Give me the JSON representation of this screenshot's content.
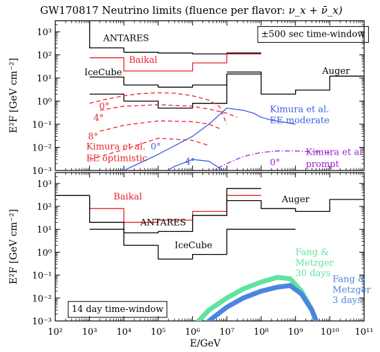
{
  "title": "GW170817 Neutrino limits (fluence per flavor: ",
  "title_math": "ν_x + ν̄_x)",
  "xlabel": "E/GeV",
  "chart_data": [
    {
      "type": "line",
      "panel": "top",
      "x_scale": "log",
      "y_scale": "log",
      "xlim": [
        100,
        100000000000
      ],
      "ylim": [
        0.001,
        3000
      ],
      "ylabel": "E²F [GeV cm⁻²]",
      "x_ticks": [
        "10²",
        "10³",
        "10⁴",
        "10⁵",
        "10⁶",
        "10⁷",
        "10⁸",
        "10⁹",
        "10¹⁰",
        "10¹¹"
      ],
      "y_ticks": [
        "10⁻³",
        "10⁻²",
        "10⁻¹",
        "10⁰",
        "10¹",
        "10²",
        "10³"
      ],
      "annotations": [
        {
          "key": "window",
          "text": "±500 sec time-window",
          "x": 100000000.0,
          "y": 600,
          "color": "#000000",
          "boxed": true
        },
        {
          "key": "antares",
          "text": "ANTARES",
          "x": 2500,
          "y": 400,
          "color": "#000000"
        },
        {
          "key": "baikal",
          "text": "Baikal",
          "x": 14000,
          "y": 45,
          "color": "#e8202a"
        },
        {
          "key": "icecube",
          "text": "IceCube",
          "x": 700,
          "y": 13,
          "color": "#000000"
        },
        {
          "key": "auger",
          "text": "Auger",
          "x": 6000000000.0,
          "y": 15,
          "color": "#000000"
        },
        {
          "key": "ang0a",
          "text": "0°",
          "x": 1900,
          "y": 0.45,
          "color": "#e8202a"
        },
        {
          "key": "ang4a",
          "text": "4°",
          "x": 1300,
          "y": 0.14,
          "color": "#e8202a"
        },
        {
          "key": "ang8a",
          "text": "8°",
          "x": 900,
          "y": 0.022,
          "color": "#e8202a"
        },
        {
          "key": "kimopt1",
          "text": "Kimura et al.",
          "x": 800,
          "y": 0.008,
          "color": "#e8202a"
        },
        {
          "key": "kimopt2",
          "text": "EE optimistic",
          "x": 800,
          "y": 0.0025,
          "color": "#e8202a"
        },
        {
          "key": "ang0b",
          "text": "0°",
          "x": 60000,
          "y": 0.008,
          "color": "#3a5ddb"
        },
        {
          "key": "ang4b",
          "text": "4°",
          "x": 600000,
          "y": 0.0018,
          "color": "#3a5ddb"
        },
        {
          "key": "kimmod1",
          "text": "Kimura et al.",
          "x": 180000000.0,
          "y": 0.33,
          "color": "#3a5ddb"
        },
        {
          "key": "kimmod2",
          "text": "EE moderate",
          "x": 180000000.0,
          "y": 0.11,
          "color": "#3a5ddb"
        },
        {
          "key": "ang0c",
          "text": "0°",
          "x": 180000000.0,
          "y": 0.0017,
          "color": "#9a1fd0"
        },
        {
          "key": "kimpr1",
          "text": "Kimura et al.",
          "x": 2000000000.0,
          "y": 0.0047,
          "color": "#9a1fd0"
        },
        {
          "key": "kimpr2",
          "text": "prompt",
          "x": 2000000000.0,
          "y": 0.0014,
          "color": "#9a1fd0"
        }
      ],
      "series": [
        {
          "key": "antares",
          "color": "#000000",
          "style": "step",
          "x": [
            1000,
            1000,
            10000,
            10000,
            100000,
            100000,
            1000000,
            1000000,
            10000000,
            10000000,
            100000000
          ],
          "y": [
            3000,
            200,
            200,
            130,
            130,
            120,
            120,
            110,
            110,
            120,
            120
          ]
        },
        {
          "key": "baikal",
          "color": "#e8202a",
          "style": "step",
          "x": [
            1000,
            10000,
            10000,
            100000,
            100000,
            1000000,
            1000000,
            10000000,
            10000000,
            100000000
          ],
          "y": [
            75,
            75,
            20,
            20,
            20,
            20,
            45,
            45,
            110,
            110
          ]
        },
        {
          "key": "icecube1",
          "color": "#000000",
          "style": "step",
          "x": [
            1000,
            10000,
            10000,
            100000,
            100000,
            1000000,
            1000000,
            10000000,
            10000000,
            100000000
          ],
          "y": [
            11,
            11,
            5,
            5,
            4,
            4,
            5,
            5,
            15,
            15
          ]
        },
        {
          "key": "icecube2",
          "color": "#000000",
          "style": "step",
          "x": [
            1000,
            10000,
            10000,
            100000,
            100000,
            1000000,
            1000000,
            10000000,
            10000000,
            100000000
          ],
          "y": [
            2,
            2,
            1,
            1,
            0.5,
            0.5,
            0.8,
            0.8,
            15,
            15
          ]
        },
        {
          "key": "auger",
          "color": "#000000",
          "style": "step",
          "x": [
            10000000.0,
            10000000.0,
            100000000.0,
            100000000.0,
            1000000000.0,
            1000000000.0,
            10000000000.0,
            10000000000.0,
            100000000000.0
          ],
          "y": [
            18,
            18,
            18,
            2,
            2,
            3,
            3,
            12,
            12
          ]
        },
        {
          "key": "kim_opt_0",
          "color": "#e8202a",
          "style": "dashed",
          "x": [
            1000,
            3000,
            10000,
            30000,
            100000,
            300000,
            1000000,
            3000000,
            6000000,
            10000000
          ],
          "y": [
            0.8,
            1.2,
            1.7,
            2.1,
            2.3,
            2.2,
            1.7,
            1.1,
            0.6,
            0.1
          ]
        },
        {
          "key": "kim_opt_4",
          "color": "#e8202a",
          "style": "dashed",
          "x": [
            2000,
            10000,
            100000,
            1000000,
            3000000,
            10000000,
            20000000
          ],
          "y": [
            0.4,
            0.6,
            0.7,
            0.6,
            0.45,
            0.3,
            0.2
          ]
        },
        {
          "key": "kim_opt_8",
          "color": "#e8202a",
          "style": "dashed",
          "x": [
            2000,
            10000,
            100000,
            1000000,
            3000000,
            7000000
          ],
          "y": [
            0.05,
            0.09,
            0.14,
            0.13,
            0.1,
            0.06
          ]
        },
        {
          "key": "kim_opt_low",
          "color": "#e8202a",
          "style": "dashed",
          "x": [
            1000,
            10000,
            100000,
            1000000,
            3000000
          ],
          "y": [
            0.003,
            0.008,
            0.025,
            0.02,
            0.012
          ]
        },
        {
          "key": "kim_mod_0",
          "color": "#3a5ddb",
          "style": "solid",
          "x": [
            10000,
            100000,
            1000000,
            3000000,
            10000000,
            30000000,
            60000000,
            100000000,
            200000000,
            500000000,
            1000000000
          ],
          "y": [
            0.001,
            0.005,
            0.03,
            0.1,
            0.5,
            0.4,
            0.3,
            0.2,
            0.15,
            0.12,
            0.1
          ]
        },
        {
          "key": "kim_mod_4",
          "color": "#3a5ddb",
          "style": "solid",
          "x": [
            100000,
            300000,
            1000000,
            3000000,
            10000000
          ],
          "y": [
            0.0006,
            0.0015,
            0.003,
            0.0025,
            0.0008
          ]
        },
        {
          "key": "kim_prompt",
          "color": "#9a1fd0",
          "style": "dashdot",
          "x": [
            3000000,
            10000000,
            30000000,
            100000000,
            300000000,
            1000000000,
            3000000000,
            10000000000
          ],
          "y": [
            0.0008,
            0.002,
            0.004,
            0.006,
            0.007,
            0.007,
            0.0065,
            0.006
          ]
        }
      ]
    },
    {
      "type": "line",
      "panel": "bottom",
      "x_scale": "log",
      "y_scale": "log",
      "xlim": [
        100,
        100000000000
      ],
      "ylim": [
        0.001,
        3000
      ],
      "ylabel": "E²F [GeV cm⁻²]",
      "x_ticks": [
        "10²",
        "10³",
        "10⁴",
        "10⁵",
        "10⁶",
        "10⁷",
        "10⁸",
        "10⁹",
        "10¹⁰",
        "10¹¹"
      ],
      "y_ticks": [
        "10⁻³",
        "10⁻²",
        "10⁻¹",
        "10⁰",
        "10¹",
        "10²",
        "10³"
      ],
      "annotations": [
        {
          "key": "window",
          "text": "14 day time-window",
          "x": 300,
          "y": 0.0025,
          "color": "#000000",
          "boxed": true
        },
        {
          "key": "baikal",
          "text": "Baikal",
          "x": 5000,
          "y": 200,
          "color": "#e8202a"
        },
        {
          "key": "antares",
          "text": "ANTARES",
          "x": 30000,
          "y": 15,
          "color": "#000000"
        },
        {
          "key": "icecube",
          "text": "IceCube",
          "x": 300000,
          "y": 1.5,
          "color": "#000000"
        },
        {
          "key": "auger",
          "text": "Auger",
          "x": 400000000,
          "y": 150,
          "color": "#000000"
        },
        {
          "key": "fang30a",
          "text": "Fang &",
          "x": 1000000000.0,
          "y": 0.75,
          "color": "#5fe3a0"
        },
        {
          "key": "fang30b",
          "text": "Metzger",
          "x": 1000000000.0,
          "y": 0.26,
          "color": "#5fe3a0"
        },
        {
          "key": "fang30c",
          "text": "30 days",
          "x": 1000000000.0,
          "y": 0.09,
          "color": "#5fe3a0"
        },
        {
          "key": "fang3a",
          "text": "Fang &",
          "x": 12000000000.0,
          "y": 0.05,
          "color": "#4a86df"
        },
        {
          "key": "fang3b",
          "text": "Metzger",
          "x": 12000000000.0,
          "y": 0.017,
          "color": "#4a86df"
        },
        {
          "key": "fang3c",
          "text": "3 days",
          "x": 12000000000.0,
          "y": 0.006,
          "color": "#4a86df"
        }
      ],
      "series": [
        {
          "key": "baikal",
          "color": "#e8202a",
          "style": "step",
          "x": [
            1000,
            1000,
            10000,
            10000,
            100000,
            100000,
            1000000,
            1000000,
            10000000,
            10000000,
            100000000
          ],
          "y": [
            250,
            80,
            80,
            20,
            20,
            25,
            25,
            60,
            60,
            300,
            300
          ]
        },
        {
          "key": "antares",
          "color": "#000000",
          "style": "step",
          "x": [
            100,
            1000,
            1000,
            10000,
            10000,
            100000,
            100000,
            1000000,
            1000000,
            10000000,
            10000000,
            100000000
          ],
          "y": [
            300,
            300,
            20,
            20,
            7,
            7,
            8,
            8,
            40,
            40,
            600,
            600
          ]
        },
        {
          "key": "icecube",
          "color": "#000000",
          "style": "step",
          "x": [
            1000,
            10000,
            10000,
            100000,
            100000,
            1000000,
            1000000,
            10000000,
            10000000,
            1000000000
          ],
          "y": [
            10,
            10,
            2,
            2,
            0.5,
            0.5,
            0.8,
            0.8,
            10,
            10
          ]
        },
        {
          "key": "auger",
          "color": "#000000",
          "style": "step",
          "x": [
            10000000,
            100000000,
            100000000,
            1000000000,
            1000000000,
            10000000000,
            10000000000,
            100000000000
          ],
          "y": [
            180,
            180,
            80,
            80,
            60,
            60,
            200,
            200
          ]
        },
        {
          "key": "fang30",
          "color": "#5fe3a0",
          "style": "band",
          "x": [
            1500000,
            3000000,
            10000000,
            30000000,
            100000000,
            300000000,
            700000000,
            1500000000,
            3000000000,
            4000000000
          ],
          "y": [
            0.001,
            0.003,
            0.01,
            0.025,
            0.05,
            0.08,
            0.07,
            0.02,
            0.003,
            0.001
          ]
        },
        {
          "key": "fang3",
          "color": "#4a86df",
          "style": "band",
          "x": [
            3000000,
            10000000,
            30000000,
            100000000,
            300000000,
            700000000,
            1500000000,
            3000000000,
            4000000000
          ],
          "y": [
            0.001,
            0.004,
            0.01,
            0.02,
            0.03,
            0.035,
            0.015,
            0.003,
            0.001
          ]
        }
      ]
    }
  ]
}
